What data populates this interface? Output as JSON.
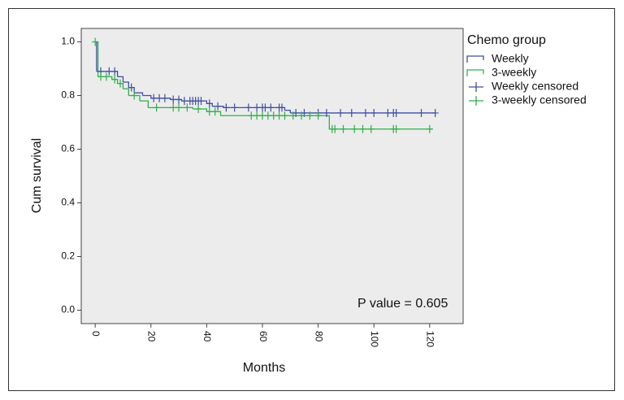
{
  "chart_data": {
    "type": "kaplan-meier",
    "y_label": "Cum survival",
    "x_label": "Months",
    "legend_title": "Chemo group",
    "legend": "outside-top-right",
    "annotation": "P value = 0.605",
    "xlim": [
      -5,
      132
    ],
    "xticks": [
      0,
      20,
      40,
      60,
      80,
      100,
      120
    ],
    "ylim": [
      -0.05,
      1.05
    ],
    "yticks": [
      {
        "value": 0,
        "label": "0.0"
      },
      0.2,
      0.4,
      0.6,
      0.8,
      {
        "value": 1,
        "label": "1.0"
      }
    ],
    "series": [
      {
        "name": "Weekly",
        "color": "#3f4fa3",
        "marker": "step",
        "x": [
          0,
          0.5,
          8,
          10,
          12,
          14,
          17,
          20,
          27,
          31,
          40,
          42,
          46,
          68,
          70,
          122
        ],
        "values": [
          1.0,
          0.89,
          0.87,
          0.85,
          0.83,
          0.81,
          0.8,
          0.79,
          0.785,
          0.78,
          0.77,
          0.76,
          0.755,
          0.745,
          0.735,
          0.735
        ]
      },
      {
        "name": "3-weekly",
        "color": "#2fb04a",
        "marker": "step",
        "x": [
          0,
          1,
          6,
          8,
          10,
          12,
          16,
          19,
          35,
          40,
          45,
          84,
          121
        ],
        "values": [
          1.0,
          0.87,
          0.86,
          0.845,
          0.825,
          0.8,
          0.78,
          0.755,
          0.75,
          0.74,
          0.725,
          0.675,
          0.675
        ]
      },
      {
        "name": "Weekly censored",
        "color": "#3f4fa3",
        "marker": "plus",
        "x": [
          2,
          5,
          7,
          13,
          21,
          23,
          25,
          28,
          30,
          32,
          34,
          35,
          36,
          37,
          38,
          41,
          44,
          47,
          50,
          55,
          58,
          60,
          61,
          63,
          66,
          67,
          72,
          75,
          80,
          83,
          88,
          92,
          97,
          100,
          105,
          107,
          108,
          117,
          122
        ],
        "values": [
          0.89,
          0.89,
          0.89,
          0.83,
          0.79,
          0.79,
          0.79,
          0.785,
          0.785,
          0.78,
          0.78,
          0.78,
          0.78,
          0.78,
          0.78,
          0.77,
          0.76,
          0.755,
          0.755,
          0.755,
          0.755,
          0.755,
          0.755,
          0.755,
          0.755,
          0.755,
          0.735,
          0.735,
          0.735,
          0.735,
          0.735,
          0.735,
          0.735,
          0.735,
          0.735,
          0.735,
          0.735,
          0.735,
          0.735
        ]
      },
      {
        "name": "3-weekly censored",
        "color": "#2fb04a",
        "marker": "plus",
        "x": [
          0,
          2,
          4,
          7,
          9,
          14,
          22,
          28,
          30,
          33,
          37,
          41,
          43,
          56,
          58,
          60,
          62,
          64,
          66,
          68,
          71,
          74,
          77,
          80,
          85,
          86,
          89,
          93,
          96,
          99,
          107,
          108,
          120
        ],
        "values": [
          1.0,
          0.87,
          0.87,
          0.86,
          0.845,
          0.8,
          0.755,
          0.755,
          0.755,
          0.755,
          0.75,
          0.74,
          0.74,
          0.725,
          0.725,
          0.725,
          0.725,
          0.725,
          0.725,
          0.725,
          0.725,
          0.725,
          0.725,
          0.725,
          0.675,
          0.675,
          0.675,
          0.675,
          0.675,
          0.675,
          0.675,
          0.675,
          0.675
        ]
      }
    ]
  }
}
